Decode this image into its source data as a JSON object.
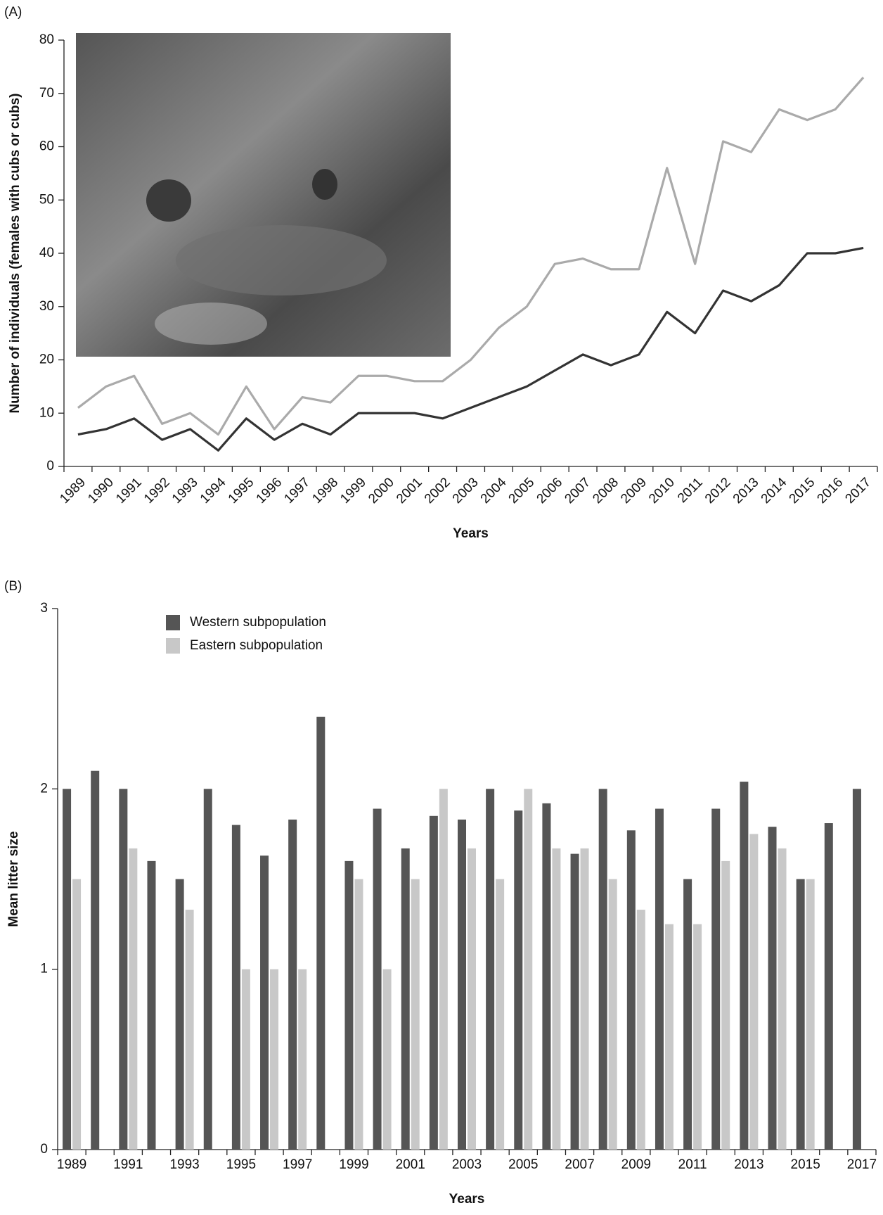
{
  "chart_data": [
    {
      "type": "line",
      "panel_label": "(A)",
      "ylabel": "Number of individuals (females with cubs or cubs)",
      "xlabel": "Years",
      "categories": [
        "1989",
        "1990",
        "1991",
        "1992",
        "1993",
        "1994",
        "1995",
        "1996",
        "1997",
        "1998",
        "1999",
        "2000",
        "2001",
        "2002",
        "2003",
        "2004",
        "2005",
        "2006",
        "2007",
        "2008",
        "2009",
        "2010",
        "2011",
        "2012",
        "2013",
        "2014",
        "2015",
        "2016",
        "2017"
      ],
      "series": [
        {
          "color": "#aaaaaa",
          "values": [
            11,
            15,
            17,
            8,
            10,
            6,
            15,
            7,
            13,
            12,
            17,
            17,
            16,
            16,
            20,
            26,
            30,
            38,
            39,
            37,
            37,
            56,
            38,
            61,
            59,
            67,
            65,
            67,
            73
          ]
        },
        {
          "color": "#333333",
          "values": [
            6,
            7,
            9,
            5,
            7,
            3,
            9,
            5,
            8,
            6,
            10,
            10,
            10,
            9,
            11,
            13,
            15,
            18,
            21,
            19,
            21,
            29,
            25,
            33,
            31,
            34,
            40,
            40,
            41
          ]
        }
      ],
      "ylim": [
        0,
        80
      ],
      "yticks": [
        0,
        10,
        20,
        30,
        40,
        50,
        60,
        70,
        80
      ]
    },
    {
      "type": "bar",
      "panel_label": "(B)",
      "ylabel": "Mean litter size",
      "xlabel": "Years",
      "categories": [
        "1989",
        null,
        "1991",
        null,
        "1993",
        null,
        "1995",
        null,
        "1997",
        null,
        "1999",
        null,
        "2001",
        null,
        "2003",
        null,
        "2005",
        null,
        "2007",
        null,
        "2009",
        null,
        "2011",
        null,
        "2013",
        null,
        "2015",
        null,
        "2017"
      ],
      "series": [
        {
          "name": "Western subpopulation",
          "color": "#555555",
          "values": [
            2.0,
            2.1,
            2.0,
            1.6,
            1.5,
            2.0,
            1.8,
            1.63,
            1.83,
            2.4,
            1.6,
            1.89,
            1.67,
            1.85,
            1.83,
            2.0,
            1.88,
            1.92,
            1.64,
            2.0,
            1.77,
            1.89,
            1.5,
            1.89,
            2.04,
            1.79,
            1.5,
            1.81,
            2.0
          ]
        },
        {
          "name": "Eastern subpopulation",
          "color": "#c8c8c8",
          "values": [
            1.5,
            null,
            1.67,
            null,
            1.33,
            null,
            1.0,
            1.0,
            1.0,
            null,
            1.5,
            1.0,
            1.5,
            2.0,
            1.67,
            1.5,
            2.0,
            1.67,
            1.67,
            1.5,
            1.33,
            1.25,
            1.25,
            1.6,
            1.75,
            1.67,
            1.5,
            null,
            null
          ]
        }
      ],
      "ylim": [
        0,
        3
      ],
      "yticks": [
        0,
        1,
        2,
        3
      ],
      "legend": "top-left"
    }
  ]
}
